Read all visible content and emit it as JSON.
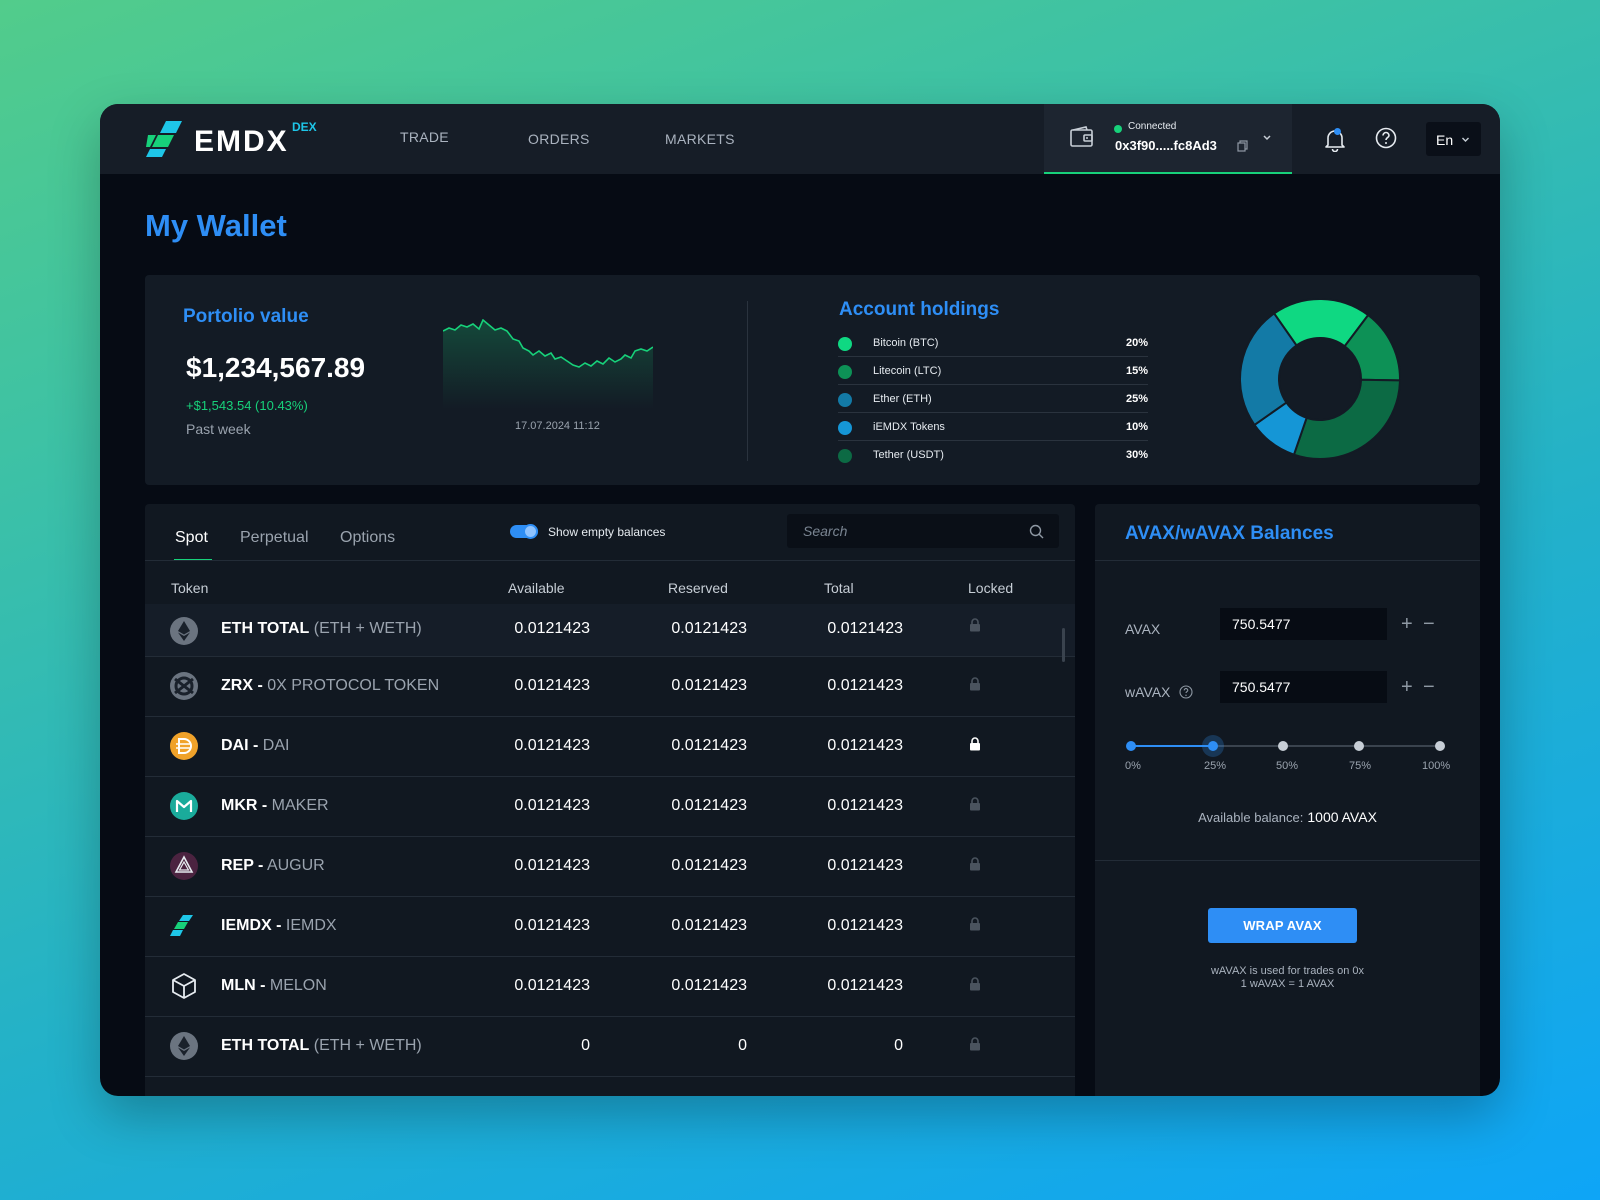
{
  "header": {
    "logo_text": "EMDX",
    "logo_badge": "DEX",
    "nav": [
      "TRADE",
      "ORDERS",
      "MARKETS"
    ],
    "wallet": {
      "status": "Connected",
      "address": "0x3f90.....fc8Ad3"
    },
    "language": "En"
  },
  "page_title": "My Wallet",
  "portfolio": {
    "title": "Portolio value",
    "value": "$1,234,567.89",
    "change": "+$1,543.54 (10.43%)",
    "period": "Past week",
    "chart_date": "17.07.2024 11:12"
  },
  "holdings": {
    "title": "Account holdings",
    "items": [
      {
        "name": "Bitcoin (BTC)",
        "pct": "20%",
        "color": "#0fd882"
      },
      {
        "name": "Litecoin (LTC)",
        "pct": "15%",
        "color": "#0d9156"
      },
      {
        "name": "Ether (ETH)",
        "pct": "25%",
        "color": "#137aa6"
      },
      {
        "name": "iEMDX Tokens",
        "pct": "10%",
        "color": "#1596d6"
      },
      {
        "name": "Tether (USDT)",
        "pct": "30%",
        "color": "#0c6a44"
      }
    ]
  },
  "tokens": {
    "tabs": [
      "Spot",
      "Perpetual",
      "Options"
    ],
    "show_empty_label": "Show empty balances",
    "search_placeholder": "Search",
    "columns": [
      "Token",
      "Available",
      "Reserved",
      "Total",
      "Locked"
    ],
    "rows": [
      {
        "icon": "eth-icon",
        "symbol": "ETH TOTAL",
        "sep": " ",
        "name": "(ETH + WETH)",
        "available": "0.0121423",
        "reserved": "0.0121423",
        "total": "0.0121423",
        "locked": false
      },
      {
        "icon": "zrx-icon",
        "symbol": "ZRX -",
        "sep": " ",
        "name": "0X PROTOCOL TOKEN",
        "available": "0.0121423",
        "reserved": "0.0121423",
        "total": "0.0121423",
        "locked": false
      },
      {
        "icon": "dai-icon",
        "symbol": "DAI -",
        "sep": " ",
        "name": "DAI",
        "available": "0.0121423",
        "reserved": "0.0121423",
        "total": "0.0121423",
        "locked": true
      },
      {
        "icon": "mkr-icon",
        "symbol": "MKR -",
        "sep": " ",
        "name": "MAKER",
        "available": "0.0121423",
        "reserved": "0.0121423",
        "total": "0.0121423",
        "locked": false
      },
      {
        "icon": "rep-icon",
        "symbol": "REP -",
        "sep": " ",
        "name": "AUGUR",
        "available": "0.0121423",
        "reserved": "0.0121423",
        "total": "0.0121423",
        "locked": false
      },
      {
        "icon": "iemdx-icon",
        "symbol": "IEMDX -",
        "sep": " ",
        "name": "IEMDX",
        "available": "0.0121423",
        "reserved": "0.0121423",
        "total": "0.0121423",
        "locked": false
      },
      {
        "icon": "mln-icon",
        "symbol": "MLN -",
        "sep": " ",
        "name": "MELON",
        "available": "0.0121423",
        "reserved": "0.0121423",
        "total": "0.0121423",
        "locked": false
      },
      {
        "icon": "eth-icon",
        "symbol": "ETH TOTAL",
        "sep": " ",
        "name": "(ETH + WETH)",
        "available": "0",
        "reserved": "0",
        "total": "0",
        "locked": false
      }
    ]
  },
  "avax": {
    "title": "AVAX/wAVAX Balances",
    "avax_label": "AVAX",
    "avax_value": "750.5477",
    "wavax_label": "wAVAX",
    "wavax_value": "750.5477",
    "slider_labels": [
      "0%",
      "25%",
      "50%",
      "75%",
      "100%"
    ],
    "slider_value_percent": 25,
    "available_label": "Available balance:",
    "available_value": "1000 AVAX",
    "wrap_button": "WRAP AVAX",
    "note_line1": "wAVAX is used for trades on 0x",
    "note_line2": "1 wAVAX = 1 AVAX"
  }
}
